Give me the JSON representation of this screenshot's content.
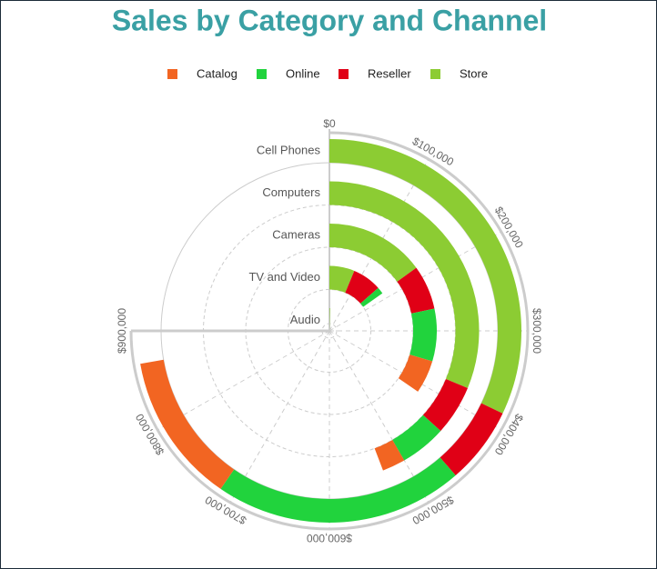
{
  "chart_data": {
    "type": "radial-stacked-bar",
    "title": "Sales by Category and Channel",
    "categories": [
      "Cell Phones",
      "Computers",
      "Cameras",
      "TV and Video",
      "Audio"
    ],
    "series": [
      {
        "name": "Catalog",
        "color": "#f26522",
        "values": [
          152000,
          30000,
          60000,
          0,
          0
        ]
      },
      {
        "name": "Online",
        "color": "#21d33d",
        "values": [
          252000,
          60000,
          95000,
          20000,
          0
        ]
      },
      {
        "name": "Reseller",
        "color": "#e00016",
        "values": [
          78000,
          65000,
          80000,
          87000,
          0
        ]
      },
      {
        "name": "Store",
        "color": "#8ccc33",
        "values": [
          385000,
          375000,
          180000,
          75000,
          5000
        ]
      }
    ],
    "xlim": [
      0,
      900000
    ],
    "xticks": [
      {
        "value": 0,
        "label": "$0"
      },
      {
        "value": 100000,
        "label": "$100,000"
      },
      {
        "value": 200000,
        "label": "$200,000"
      },
      {
        "value": 300000,
        "label": "$300,000"
      },
      {
        "value": 400000,
        "label": "$400,000"
      },
      {
        "value": 500000,
        "label": "$500,000"
      },
      {
        "value": 600000,
        "label": "$600,000"
      },
      {
        "value": 700000,
        "label": "$700,000"
      },
      {
        "value": 800000,
        "label": "$800,000"
      },
      {
        "value": 900000,
        "label": "$900,000"
      }
    ],
    "grid": true,
    "legend": "top"
  }
}
